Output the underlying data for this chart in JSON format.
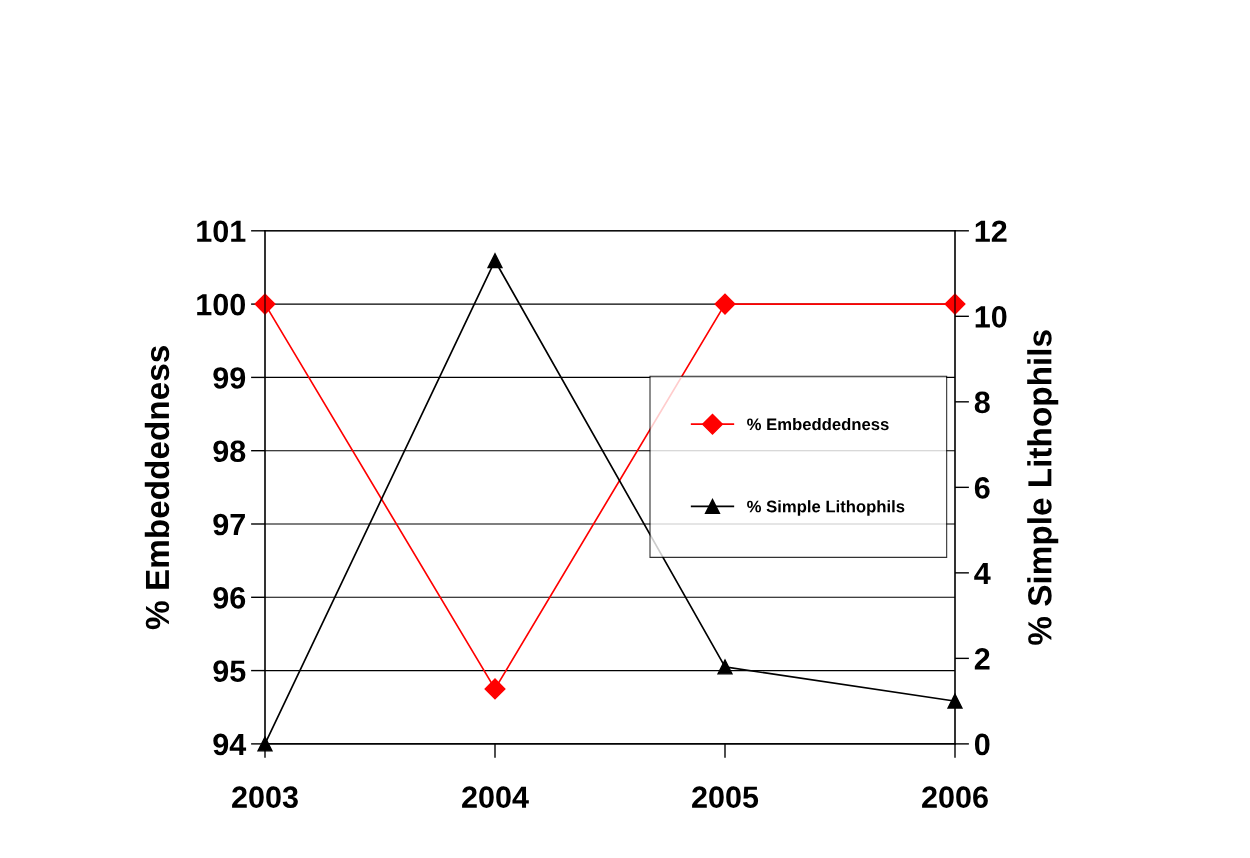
{
  "chart_data": {
    "type": "line",
    "categories": [
      "2003",
      "2004",
      "2005",
      "2006"
    ],
    "ylabel": "% Embeddedness",
    "y2label": "% Simple Lithophils",
    "ylim": [
      94,
      101
    ],
    "yticks": [
      94,
      95,
      96,
      97,
      98,
      99,
      100,
      101
    ],
    "y2lim": [
      0,
      12
    ],
    "y2ticks": [
      0,
      2,
      4,
      6,
      8,
      10,
      12
    ],
    "grid": "y",
    "legend": "right",
    "series": [
      {
        "name": "% Embeddedness",
        "color": "#ff0000",
        "marker": "diamond",
        "values": [
          100,
          94.75,
          100,
          100
        ]
      },
      {
        "name": "% Simple Lithophils",
        "color": "#000000",
        "marker": "triangle",
        "axis": "y2",
        "values": [
          0,
          11.3,
          1.8,
          1.0
        ]
      }
    ]
  }
}
